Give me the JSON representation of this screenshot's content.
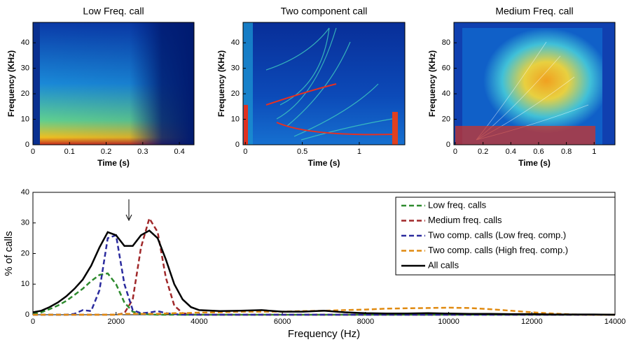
{
  "chart_data": [
    {
      "type": "spectrogram",
      "title": "Low Freq. call",
      "xlabel": "Time (s)",
      "ylabel": "Frequency (KHz)",
      "xlim": [
        0,
        0.44
      ],
      "ylim": [
        0,
        48
      ],
      "xticks": [
        0,
        0.1,
        0.2,
        0.3,
        0.4
      ],
      "yticks": [
        0,
        10,
        20,
        30,
        40
      ]
    },
    {
      "type": "spectrogram",
      "title": "Two component call",
      "xlabel": "Time (s)",
      "ylabel": "Frequency (KHz)",
      "xlim": [
        -0.02,
        1.4
      ],
      "ylim": [
        0,
        48
      ],
      "xticks": [
        0,
        0.5,
        1
      ],
      "yticks": [
        0,
        10,
        20,
        30,
        40
      ]
    },
    {
      "type": "spectrogram",
      "title": "Medium Freq. call",
      "xlabel": "Time (s)",
      "ylabel": "Frequency (KHz)",
      "xlim": [
        -0.01,
        1.15
      ],
      "ylim": [
        0,
        96
      ],
      "xticks": [
        0,
        0.2,
        0.4,
        0.6,
        0.8,
        1
      ],
      "yticks": [
        0,
        20,
        40,
        60,
        80
      ]
    },
    {
      "type": "line",
      "xlabel": "Frequency (Hz)",
      "ylabel": "% of calls",
      "xlim": [
        0,
        14000
      ],
      "ylim": [
        0,
        40
      ],
      "xticks": [
        0,
        2000,
        4000,
        6000,
        8000,
        10000,
        12000,
        14000
      ],
      "yticks": [
        0,
        10,
        20,
        30,
        40
      ],
      "legend": "upper right",
      "x": [
        0,
        200,
        400,
        600,
        800,
        1000,
        1200,
        1400,
        1600,
        1800,
        2000,
        2200,
        2400,
        2600,
        2800,
        3000,
        3200,
        3400,
        3600,
        3800,
        4000,
        4500,
        5000,
        5500,
        6000,
        6500,
        7000,
        7500,
        8000,
        8500,
        9000,
        9500,
        10000,
        10500,
        11000,
        11500,
        12000,
        12500,
        13000,
        13500,
        14000
      ],
      "series": [
        {
          "name": "Low freq. calls",
          "color": "#2e8b2e",
          "dashed": true,
          "values": [
            0.3,
            0.8,
            1.8,
            3,
            4.5,
            6.5,
            8.5,
            11,
            13,
            13.5,
            10,
            4,
            1,
            0.3,
            0.1,
            0,
            0,
            0,
            0,
            0,
            0,
            0,
            0,
            0,
            0,
            0,
            0,
            0,
            0,
            0,
            0,
            0,
            0,
            0,
            0,
            0,
            0,
            0,
            0,
            0,
            0
          ]
        },
        {
          "name": "Medium freq. calls",
          "color": "#a0282a",
          "dashed": true,
          "values": [
            0,
            0,
            0,
            0,
            0,
            0,
            0,
            0,
            0,
            0,
            0,
            0.5,
            5,
            22,
            31.5,
            27,
            12,
            3,
            0.5,
            0.1,
            0,
            0,
            0,
            0,
            0,
            0,
            0,
            0,
            0,
            0,
            0,
            0,
            0,
            0,
            0,
            0,
            0,
            0,
            0,
            0,
            0
          ]
        },
        {
          "name": "Two comp. calls (Low freq. comp.)",
          "color": "#2b2b9e",
          "dashed": true,
          "values": [
            0,
            0,
            0,
            0,
            0,
            0.3,
            1.5,
            1.2,
            8,
            25,
            26,
            10,
            1.5,
            0.5,
            0.7,
            1.2,
            0.5,
            0.2,
            0,
            0,
            0,
            0,
            0,
            0,
            0,
            0,
            0,
            0,
            0,
            0,
            0,
            0,
            0,
            0,
            0,
            0,
            0,
            0,
            0,
            0,
            0
          ]
        },
        {
          "name": "Two comp. calls (High freq. comp.)",
          "color": "#e08a10",
          "dashed": true,
          "values": [
            0,
            0,
            0,
            0,
            0,
            0,
            0,
            0,
            0,
            0,
            0,
            0.3,
            0.3,
            0.3,
            0.3,
            0.3,
            0.4,
            0.5,
            0.5,
            0.6,
            0.7,
            0.8,
            1,
            1,
            1,
            1.2,
            1.3,
            1.5,
            1.7,
            2,
            2.1,
            2.2,
            2.3,
            2.2,
            1.8,
            1.3,
            0.8,
            0.4,
            0.1,
            0,
            0
          ]
        },
        {
          "name": "All calls",
          "color": "#000000",
          "dashed": false,
          "values": [
            0.8,
            1.3,
            2.5,
            4,
            6,
            8.5,
            11.5,
            16,
            22,
            27,
            26,
            22.5,
            22.5,
            26,
            27.5,
            25,
            18,
            10,
            5,
            2.5,
            1.5,
            1.2,
            1.3,
            1.5,
            1,
            1,
            1.3,
            0.8,
            0.5,
            0.4,
            0.4,
            0.5,
            0.4,
            0.3,
            0.3,
            0.2,
            0.2,
            0.1,
            0.1,
            0.1,
            0
          ]
        }
      ]
    }
  ]
}
